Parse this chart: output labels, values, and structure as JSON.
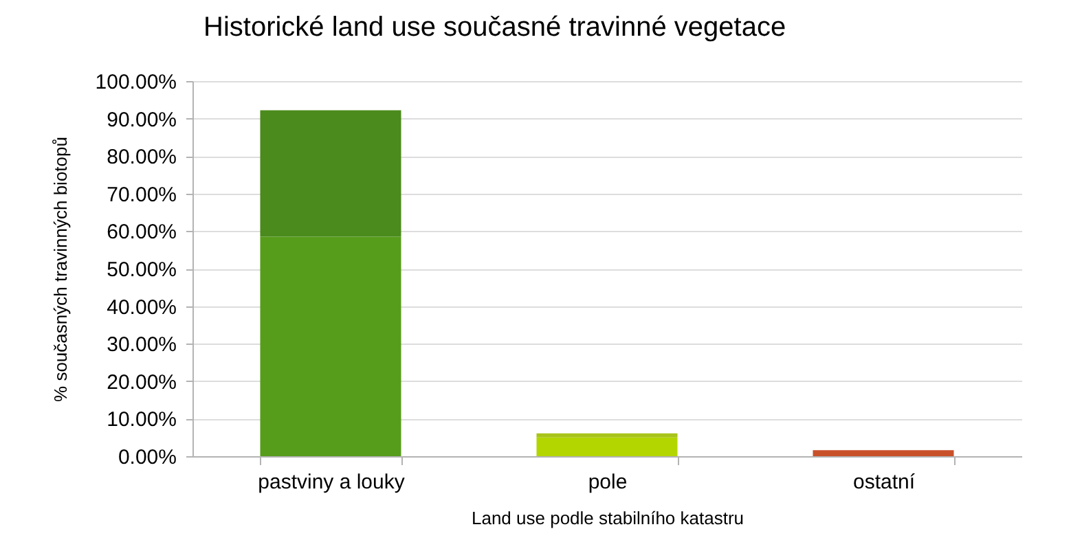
{
  "chart_data": {
    "type": "bar",
    "title": "Historické land use současné travinné vegetace",
    "xlabel": "Land use podle stabilního katastru",
    "ylabel": "% současných travinných biotopů",
    "categories": [
      "pastviny a louky",
      "pole",
      "ostatní"
    ],
    "stacked": true,
    "series": [
      {
        "colors": [
          "#579d1c",
          "#b4d600",
          "#c8512a"
        ],
        "values": [
          58.5,
          5.0,
          1.6
        ]
      },
      {
        "colors": [
          "#4b8a1c",
          "#a8c41a",
          null
        ],
        "values": [
          33.7,
          1.1,
          null
        ]
      }
    ],
    "ylim": [
      0,
      100
    ],
    "yticks": [
      {
        "value": 0,
        "label": "0.00%"
      },
      {
        "value": 10,
        "label": "10.00%"
      },
      {
        "value": 20,
        "label": "20.00%"
      },
      {
        "value": 30,
        "label": "30.00%"
      },
      {
        "value": 40,
        "label": "40.00%"
      },
      {
        "value": 50,
        "label": "50.00%"
      },
      {
        "value": 60,
        "label": "60.00%"
      },
      {
        "value": 70,
        "label": "70.00%"
      },
      {
        "value": 80,
        "label": "80.00%"
      },
      {
        "value": 90,
        "label": "90.00%"
      },
      {
        "value": 100,
        "label": "100.00%"
      }
    ],
    "grid": "y"
  }
}
